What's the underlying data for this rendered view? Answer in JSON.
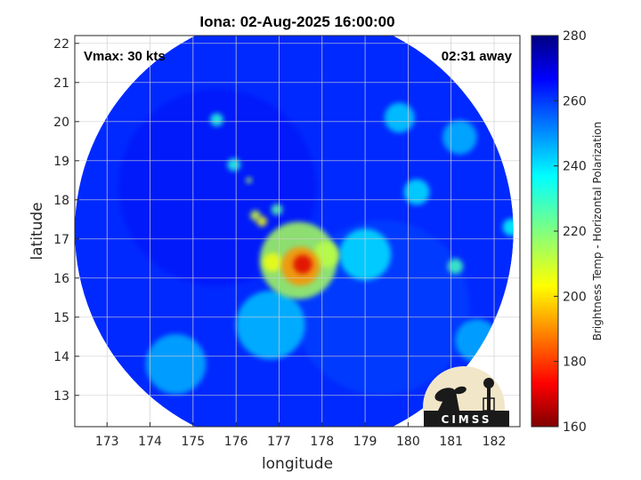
{
  "chart_data": {
    "type": "heatmap",
    "title": "Iona: 02-Aug-2025 16:00:00",
    "xlabel": "longitude",
    "ylabel": "latitude",
    "xlim": [
      172.25,
      182.6
    ],
    "ylim": [
      12.2,
      22.2
    ],
    "xticks": [
      173,
      174,
      175,
      176,
      177,
      178,
      179,
      180,
      181,
      182
    ],
    "yticks": [
      13,
      14,
      15,
      16,
      17,
      18,
      19,
      20,
      21,
      22
    ],
    "grid": true,
    "colorbar": {
      "label": "Brightness Temp - Horizontal Polarization",
      "range": [
        160,
        280
      ],
      "ticks": [
        160,
        180,
        200,
        220,
        240,
        260,
        280
      ],
      "colormap": "jet"
    },
    "swath": {
      "center_lon": 177.35,
      "center_lat": 17.2,
      "radius_deg": 5.1
    },
    "background_temp": 262,
    "features": [
      {
        "lon": 177.55,
        "lat": 16.35,
        "temp": 170,
        "spread": 0.22
      },
      {
        "lon": 177.5,
        "lat": 16.3,
        "temp": 190,
        "spread": 0.45
      },
      {
        "lon": 177.45,
        "lat": 16.45,
        "temp": 215,
        "spread": 0.9
      },
      {
        "lon": 176.85,
        "lat": 16.4,
        "temp": 205,
        "spread": 0.22
      },
      {
        "lon": 178.1,
        "lat": 16.6,
        "temp": 212,
        "spread": 0.3
      },
      {
        "lon": 176.45,
        "lat": 17.6,
        "temp": 210,
        "spread": 0.12
      },
      {
        "lon": 176.6,
        "lat": 17.45,
        "temp": 205,
        "spread": 0.12
      },
      {
        "lon": 176.95,
        "lat": 17.75,
        "temp": 225,
        "spread": 0.13
      },
      {
        "lon": 176.3,
        "lat": 18.5,
        "temp": 215,
        "spread": 0.07
      },
      {
        "lon": 175.55,
        "lat": 20.05,
        "temp": 232,
        "spread": 0.15
      },
      {
        "lon": 175.95,
        "lat": 18.9,
        "temp": 232,
        "spread": 0.15
      },
      {
        "lon": 181.1,
        "lat": 16.3,
        "temp": 228,
        "spread": 0.18
      },
      {
        "lon": 182.4,
        "lat": 17.3,
        "temp": 236,
        "spread": 0.2
      },
      {
        "lon": 180.2,
        "lat": 18.2,
        "temp": 240,
        "spread": 0.3
      },
      {
        "lon": 179.8,
        "lat": 20.1,
        "temp": 242,
        "spread": 0.35
      },
      {
        "lon": 181.2,
        "lat": 19.6,
        "temp": 245,
        "spread": 0.4
      },
      {
        "lon": 179.0,
        "lat": 16.6,
        "temp": 240,
        "spread": 0.6
      },
      {
        "lon": 176.8,
        "lat": 14.8,
        "temp": 244,
        "spread": 0.8
      },
      {
        "lon": 174.6,
        "lat": 13.8,
        "temp": 246,
        "spread": 0.7
      },
      {
        "lon": 181.6,
        "lat": 14.4,
        "temp": 246,
        "spread": 0.5
      }
    ]
  },
  "annotations": {
    "vmax": "Vmax: 30 kts",
    "away": "02:31 away"
  },
  "logo": {
    "text": "CIMSS"
  }
}
